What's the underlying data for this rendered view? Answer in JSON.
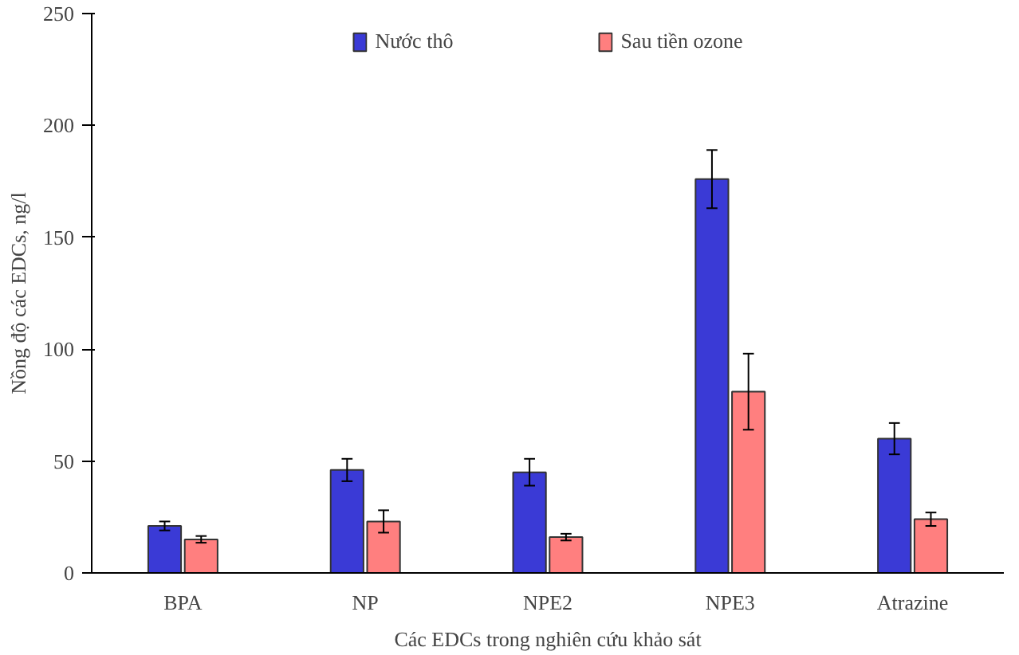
{
  "chart_data": {
    "type": "bar",
    "xlabel": "Các EDCs trong nghiên cứu khảo sát",
    "ylabel": "Nồng độ các EDCs, ng/l",
    "categories": [
      "BPA",
      "NP",
      "NPE2",
      "NPE3",
      "Atrazine"
    ],
    "series": [
      {
        "name": "Nước thô",
        "color": "#3a3ad6",
        "values": [
          21,
          46,
          45,
          176,
          60
        ],
        "errors": [
          2,
          5,
          6,
          13,
          7
        ]
      },
      {
        "name": "Sau tiền ozone",
        "color": "#ff7f7f",
        "values": [
          15,
          23,
          16,
          81,
          24
        ],
        "errors": [
          1.5,
          5,
          1.5,
          17,
          3
        ]
      }
    ],
    "ylim": [
      0,
      250
    ],
    "yticks": [
      0,
      50,
      100,
      150,
      200,
      250
    ],
    "grid": false,
    "legend": "top"
  }
}
